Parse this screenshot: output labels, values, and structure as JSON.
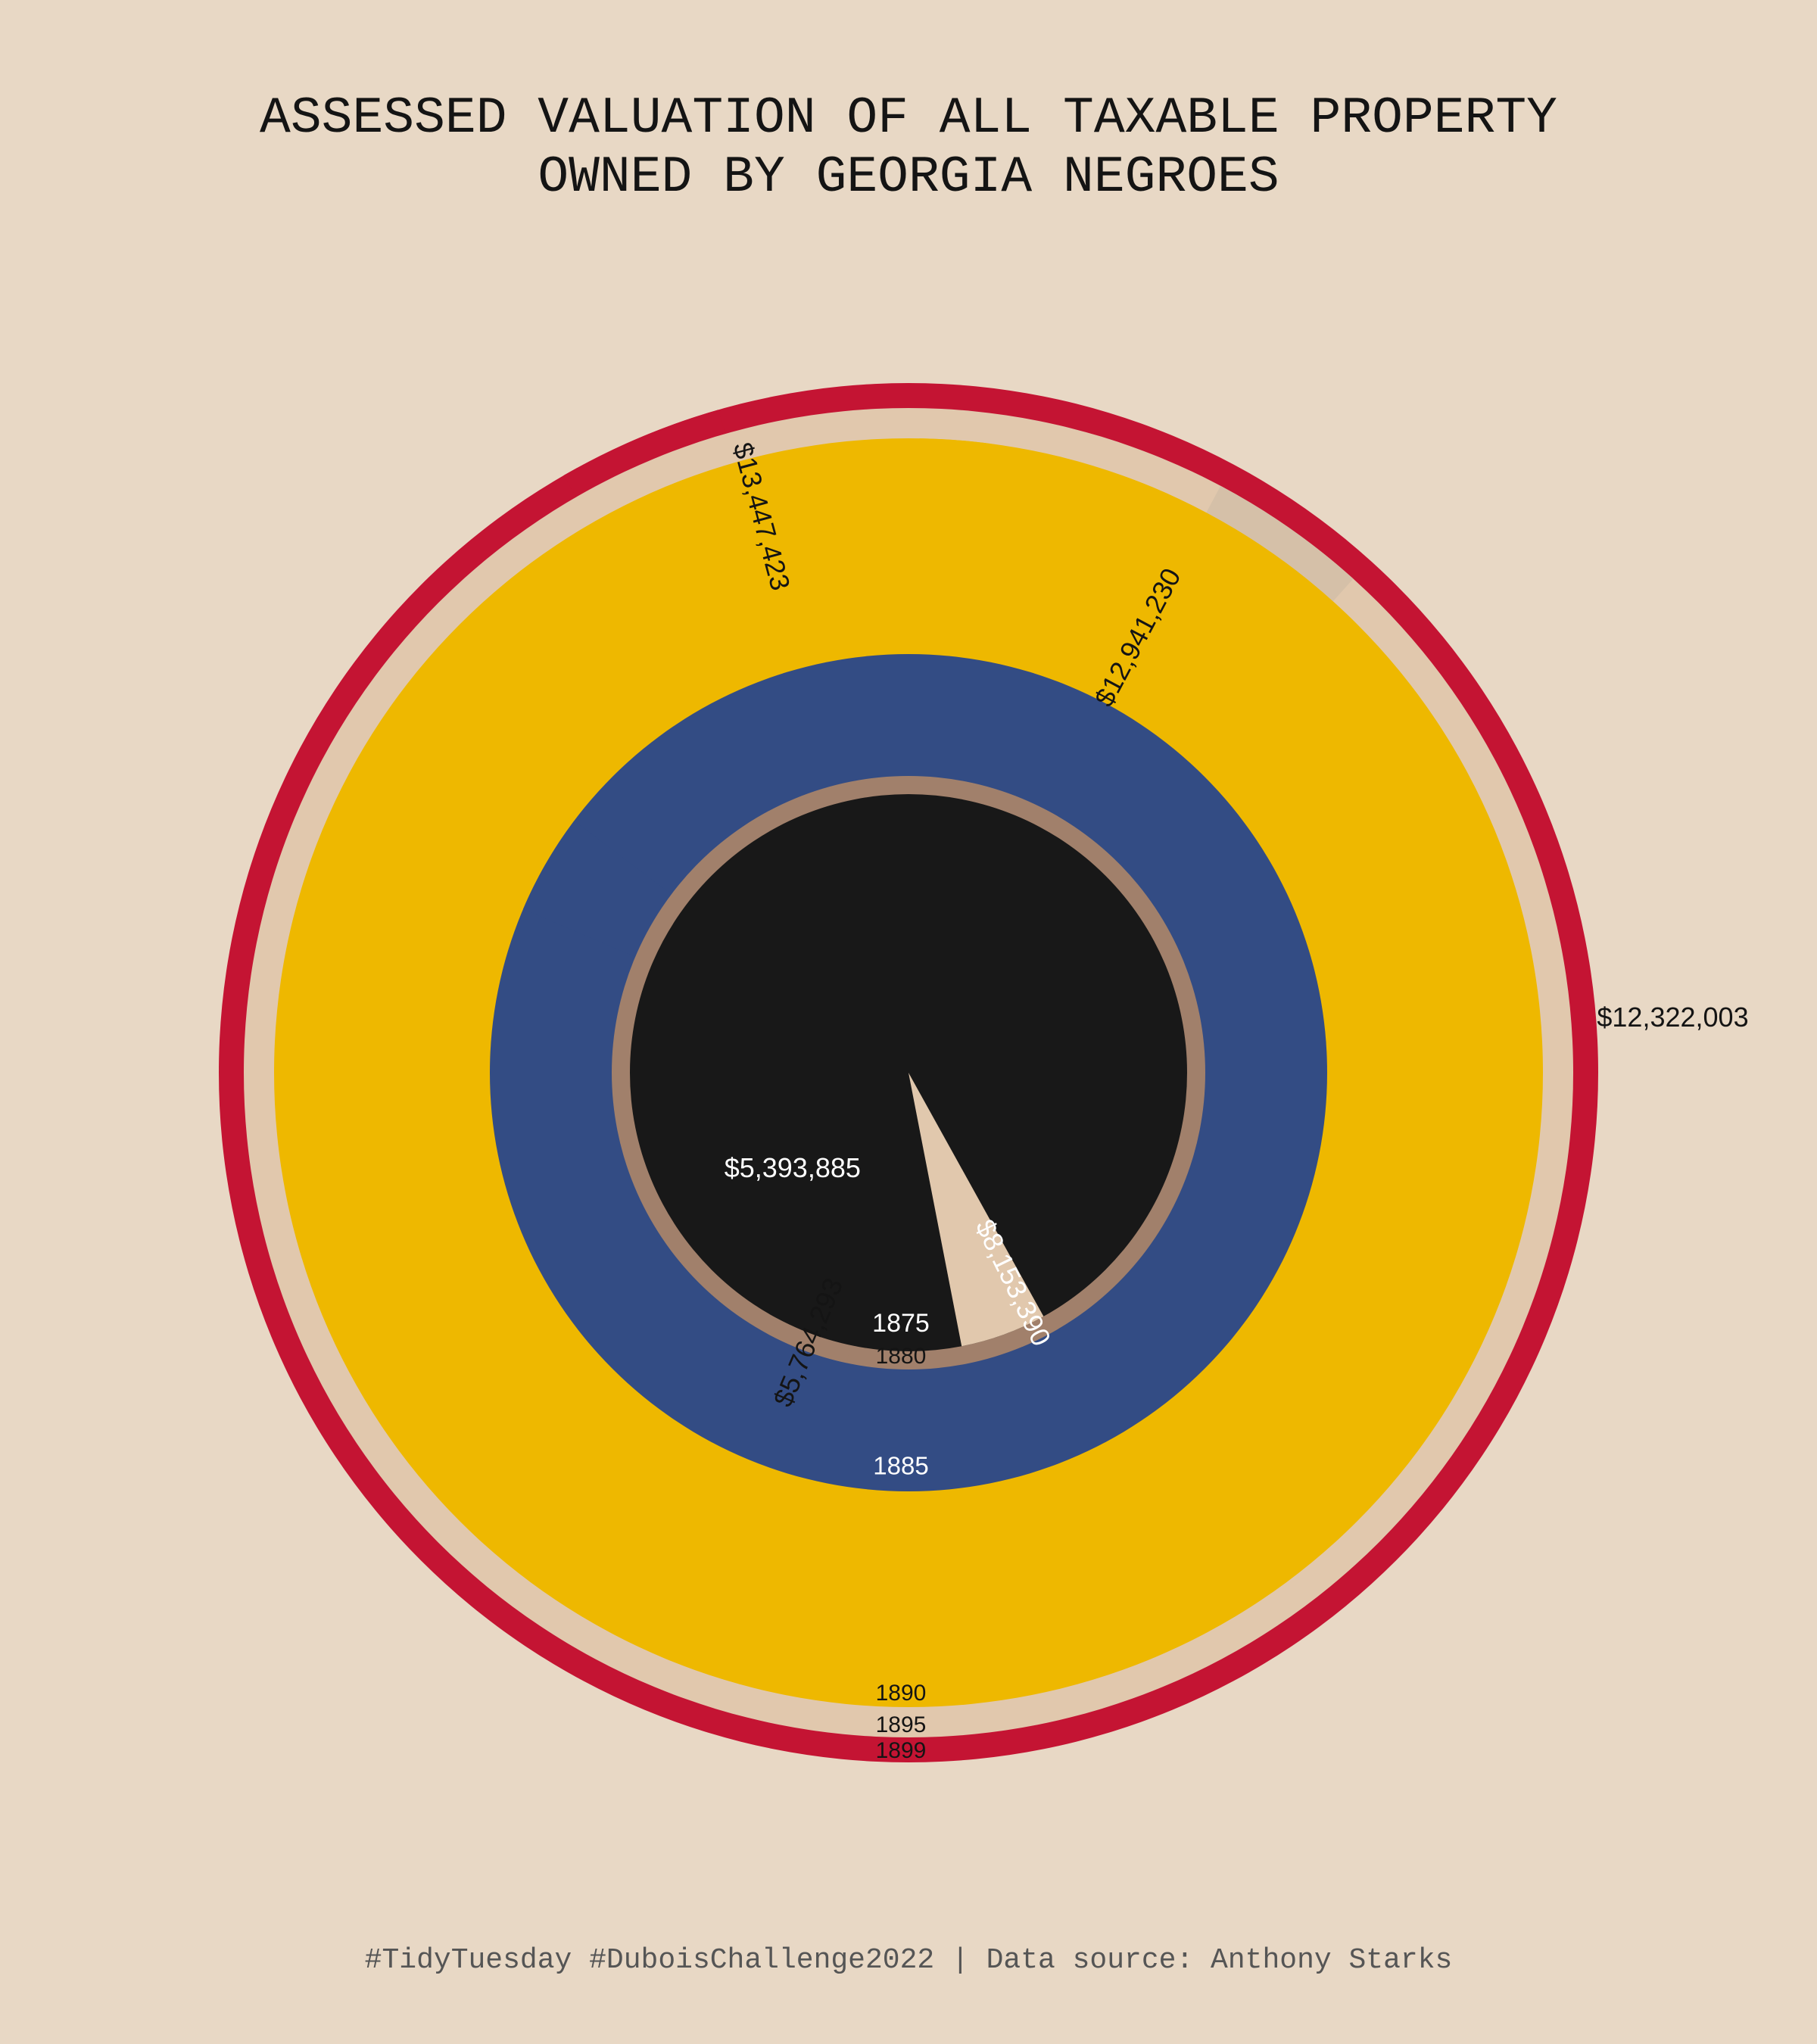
{
  "title": {
    "line1": "ASSESSED VALUATION OF ALL TAXABLE PROPERTY",
    "line2": "OWNED BY GEORGIA NEGROES"
  },
  "caption": "#TidyTuesday #DuboisChallenge2022 | Data source: Anthony Starks",
  "colors": {
    "background": "#e8d8c5",
    "1875": "#181818",
    "1880": "#a1806b",
    "1885": "#334c84",
    "1890": "#eeb800",
    "1895": "#e1c8ad",
    "1899": "#c41433"
  },
  "chart_data": {
    "type": "polar-area",
    "series": [
      {
        "year": "1875",
        "year_label": "1875",
        "value": 5393885,
        "value_label": "$5,393,885",
        "color": "#181818",
        "label_color": "#ffffff",
        "gap_color": "#e1c8ad"
      },
      {
        "year": "1880",
        "year_label": "1880",
        "value": 5764293,
        "value_label": "$5,764,293",
        "color": "#a1806b",
        "label_color": "#141414",
        "gap_color": "#a1806b"
      },
      {
        "year": "1885",
        "year_label": "1885",
        "value": 8153390,
        "value_label": "$8,153,390",
        "color": "#334c84",
        "label_color": "#ffffff",
        "gap_color": "#334c84"
      },
      {
        "year": "1890",
        "year_label": "1890",
        "value": 12322003,
        "value_label": "$12,322,003",
        "color": "#eeb800",
        "label_color": "#141414",
        "gap_color": "#eeb800"
      },
      {
        "year": "1895",
        "year_label": "1895",
        "value": 12941230,
        "value_label": "$12,941,230",
        "color": "#e1c8ad",
        "label_color": "#141414",
        "gap_color": "#d5c0a8"
      },
      {
        "year": "1899",
        "year_label": "1899",
        "value": 13447423,
        "value_label": "$13,447,423",
        "color": "#c41433",
        "label_color": "#141414",
        "gap_color": "#c41433"
      }
    ]
  }
}
